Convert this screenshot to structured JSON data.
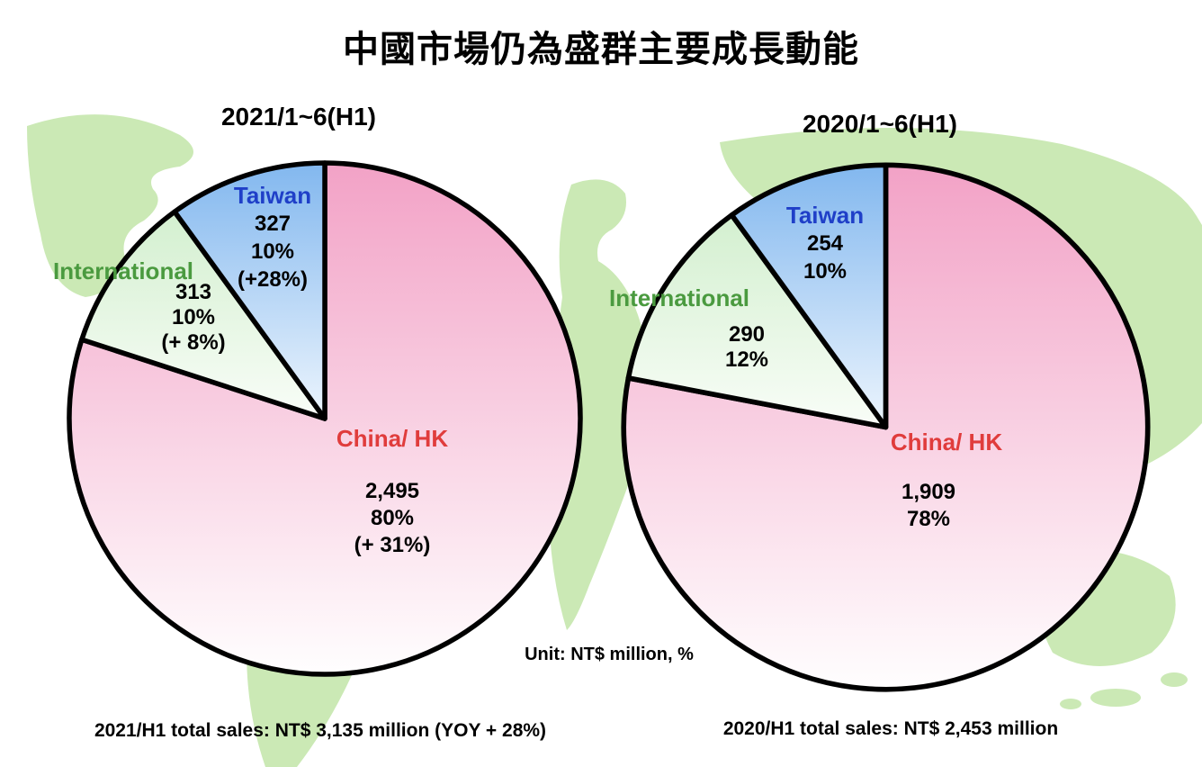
{
  "title": "中國市場仍為盛群主要成長動能",
  "unit_note": "Unit: NT$ million, %",
  "colors": {
    "taiwan_label": "#1f3fc8",
    "international_label": "#4a9a3f",
    "china_hk_label": "#e03c3c",
    "map_green": "#cbe9b5",
    "slice_gradients": [
      [
        "#f2a0c5",
        "#ffffff"
      ],
      [
        "#cfeecb",
        "#fbfefa"
      ],
      [
        "#7eb5ee",
        "#f2f8fe"
      ]
    ]
  },
  "chart_data": [
    {
      "type": "pie",
      "title": "2021/1~6(H1)",
      "labels": [
        "China/ HK",
        "International",
        "Taiwan"
      ],
      "values": [
        2495,
        313,
        327
      ],
      "display_values": [
        "2,495",
        "313",
        "327"
      ],
      "percentages": [
        80,
        10,
        10
      ],
      "pct_labels": [
        "80%",
        "10%",
        "10%"
      ],
      "yoy_labels": [
        "(+ 31%)",
        "(+ 8%)",
        "(+28%)"
      ],
      "unit": "NT$ million, %",
      "legend_position": "inside",
      "footer": "2021/H1 total sales: NT$ 3,135 million (YOY + 28%)"
    },
    {
      "type": "pie",
      "title": "2020/1~6(H1)",
      "labels": [
        "China/ HK",
        "International",
        "Taiwan"
      ],
      "values": [
        1909,
        290,
        254
      ],
      "display_values": [
        "1,909",
        "290",
        "254"
      ],
      "percentages": [
        78,
        12,
        10
      ],
      "pct_labels": [
        "78%",
        "12%",
        "10%"
      ],
      "unit": "NT$ million, %",
      "legend_position": "inside",
      "footer": "2020/H1 total sales: NT$ 2,453 million"
    }
  ]
}
